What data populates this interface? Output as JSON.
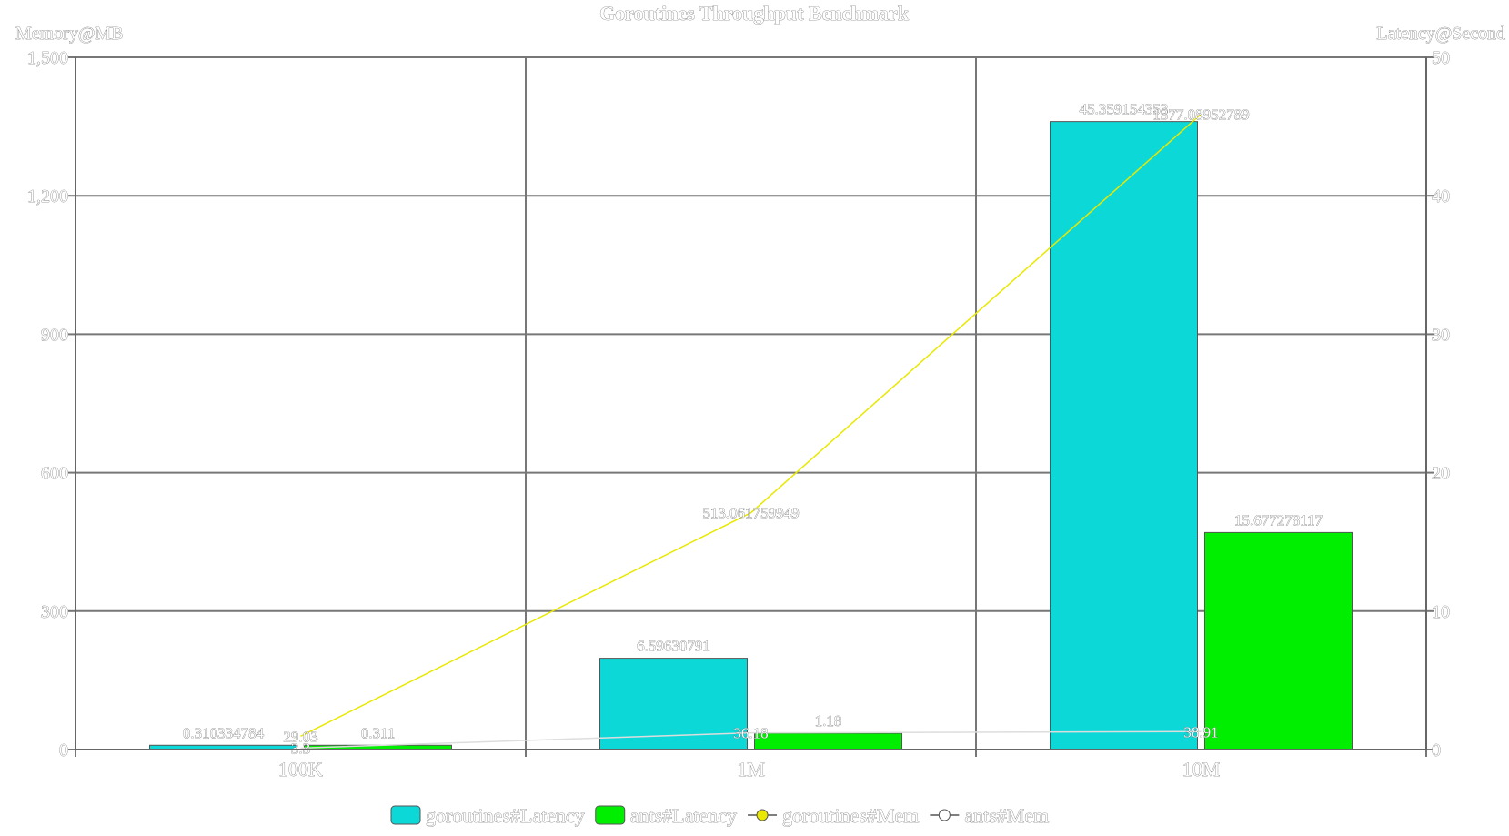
{
  "chart_data": {
    "type": "bar",
    "title": "Goroutines Throughput Benchmark",
    "left_axis_label": "Memory@MB",
    "right_axis_label": "Latency@Second",
    "categories": [
      "100K",
      "1M",
      "10M"
    ],
    "left_axis": {
      "min": 0,
      "max": 1500,
      "ticks": [
        "0",
        "300",
        "600",
        "900",
        "1,200",
        "1,500"
      ],
      "tick_values": [
        0,
        300,
        600,
        900,
        1200,
        1500
      ]
    },
    "right_axis": {
      "min": 0,
      "max": 50,
      "ticks": [
        "0",
        "10",
        "20",
        "30",
        "40",
        "50"
      ],
      "tick_values": [
        0,
        10,
        20,
        30,
        40,
        50
      ]
    },
    "grid": true,
    "legend_position": "bottom",
    "series": [
      {
        "name": "goroutines#Latency",
        "kind": "bar",
        "axis": "right",
        "color": "#0dd8d8",
        "values": [
          0.310334784,
          6.59630791,
          45.359154353
        ],
        "labels": [
          "0.310334784",
          "6.59630791",
          "45.359154353"
        ]
      },
      {
        "name": "ants#Latency",
        "kind": "bar",
        "axis": "right",
        "color": "#00ee00",
        "values": [
          0.311,
          1.18,
          15.677278117
        ],
        "labels": [
          "0.311",
          "1.18",
          "15.677278117"
        ]
      },
      {
        "name": "goroutines#Mem",
        "kind": "line",
        "axis": "left",
        "color": "#e8e800",
        "values": [
          29.03,
          513.061759949,
          1377.08952789
        ],
        "labels": [
          "29.03",
          "513.061759949",
          "1377.08952789"
        ]
      },
      {
        "name": "ants#Mem",
        "kind": "line",
        "axis": "left",
        "color": "#ffffff",
        "values": [
          3.3,
          36.18,
          38.91
        ],
        "labels": [
          "3.3",
          "36.18",
          "38.91"
        ]
      }
    ],
    "overlapping_labels": [
      "29.03827548774",
      "3.31012134552",
      "36.18299893802",
      "38.9101456063"
    ]
  }
}
